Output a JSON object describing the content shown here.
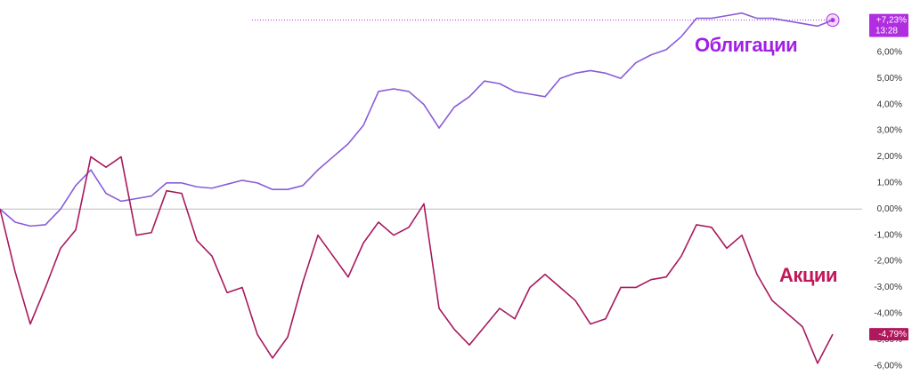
{
  "chart_data": {
    "type": "line",
    "categories": [
      null,
      null,
      null,
      null,
      null,
      null,
      null,
      null,
      null,
      null,
      null,
      null,
      null,
      null,
      null,
      null,
      null,
      null,
      null,
      null,
      null,
      null,
      null,
      null,
      null,
      null,
      null,
      null,
      null,
      null,
      null,
      null,
      null,
      null,
      null,
      null,
      null,
      null,
      null,
      null,
      null,
      null,
      null,
      null,
      null,
      null,
      null,
      null,
      null,
      null,
      null,
      null,
      null,
      null,
      null,
      null
    ],
    "series": [
      {
        "name": "Облигации",
        "color": "#8a5cd8",
        "label_color": "#a21fe6",
        "badge_color": "#b02ee0",
        "values": [
          0,
          -0.5,
          -0.65,
          -0.6,
          0,
          0.9,
          1.5,
          0.6,
          0.3,
          0.4,
          0.5,
          1.0,
          1.0,
          0.85,
          0.8,
          0.95,
          1.1,
          1.0,
          0.75,
          0.75,
          0.9,
          1.5,
          2.0,
          2.5,
          3.2,
          4.5,
          4.6,
          4.5,
          4.0,
          3.1,
          3.9,
          4.3,
          4.9,
          4.8,
          4.5,
          4.4,
          4.3,
          5.0,
          5.2,
          5.3,
          5.2,
          5.0,
          5.6,
          5.9,
          6.1,
          6.6,
          7.3,
          7.3,
          7.4,
          7.5,
          7.3,
          7.3,
          7.2,
          7.1,
          7.0,
          7.23
        ],
        "value_labels": [
          null,
          null,
          null,
          null,
          null,
          null,
          null,
          null,
          null,
          null,
          null,
          null,
          null,
          null,
          null,
          null,
          null,
          null,
          null,
          null,
          null,
          null,
          null,
          null,
          null,
          null,
          null,
          null,
          null,
          null,
          null,
          null,
          null,
          null,
          null,
          null,
          null,
          null,
          null,
          null,
          null,
          null,
          null,
          null,
          null,
          null,
          null,
          null,
          null,
          null,
          null,
          null,
          null,
          null,
          null,
          "+7,23%"
        ],
        "time_label": "13:28"
      },
      {
        "name": "Акции",
        "color": "#a8195e",
        "label_color": "#c0185a",
        "badge_color": "#b0185c",
        "values": [
          0,
          -2.4,
          -4.4,
          -3.0,
          -1.5,
          -0.8,
          2.0,
          1.6,
          2.0,
          -1.0,
          -0.9,
          0.7,
          0.6,
          -1.2,
          -1.8,
          -3.2,
          -3.0,
          -4.8,
          -5.7,
          -4.9,
          -2.8,
          -1.0,
          -1.8,
          -2.6,
          -1.3,
          -0.5,
          -1.0,
          -0.7,
          0.2,
          -3.8,
          -4.6,
          -5.2,
          -4.5,
          -3.8,
          -4.2,
          -3.0,
          -2.5,
          -3.0,
          -3.5,
          -4.4,
          -4.2,
          -3.0,
          -3.0,
          -2.7,
          -2.6,
          -1.8,
          -0.6,
          -0.7,
          -1.5,
          -1.0,
          -2.5,
          -3.5,
          -4.0,
          -4.5,
          -5.9,
          -4.79
        ],
        "value_labels": [
          null,
          null,
          null,
          null,
          null,
          null,
          null,
          null,
          null,
          null,
          null,
          null,
          null,
          null,
          null,
          null,
          null,
          null,
          null,
          null,
          null,
          null,
          null,
          null,
          null,
          null,
          null,
          null,
          null,
          null,
          null,
          null,
          null,
          null,
          null,
          null,
          null,
          null,
          null,
          null,
          null,
          null,
          null,
          null,
          null,
          null,
          null,
          null,
          null,
          null,
          null,
          null,
          null,
          null,
          null,
          "-4,79%"
        ]
      }
    ],
    "ylim": [
      -6.35,
      8.0
    ],
    "yticks": [
      {
        "value": 6,
        "label": "6,00%"
      },
      {
        "value": 5,
        "label": "5,00%"
      },
      {
        "value": 4,
        "label": "4,00%"
      },
      {
        "value": 3,
        "label": "3,00%"
      },
      {
        "value": 2,
        "label": "2,00%"
      },
      {
        "value": 1,
        "label": "1,00%"
      },
      {
        "value": 0,
        "label": "0,00%"
      },
      {
        "value": -1,
        "label": "-1,00%"
      },
      {
        "value": -2,
        "label": "-2,00%"
      },
      {
        "value": -3,
        "label": "-3,00%"
      },
      {
        "value": -4,
        "label": "-4,00%"
      },
      {
        "value": -5,
        "label": "-5,00%"
      },
      {
        "value": -6,
        "label": "-6,00%"
      }
    ],
    "zero_line": true
  }
}
